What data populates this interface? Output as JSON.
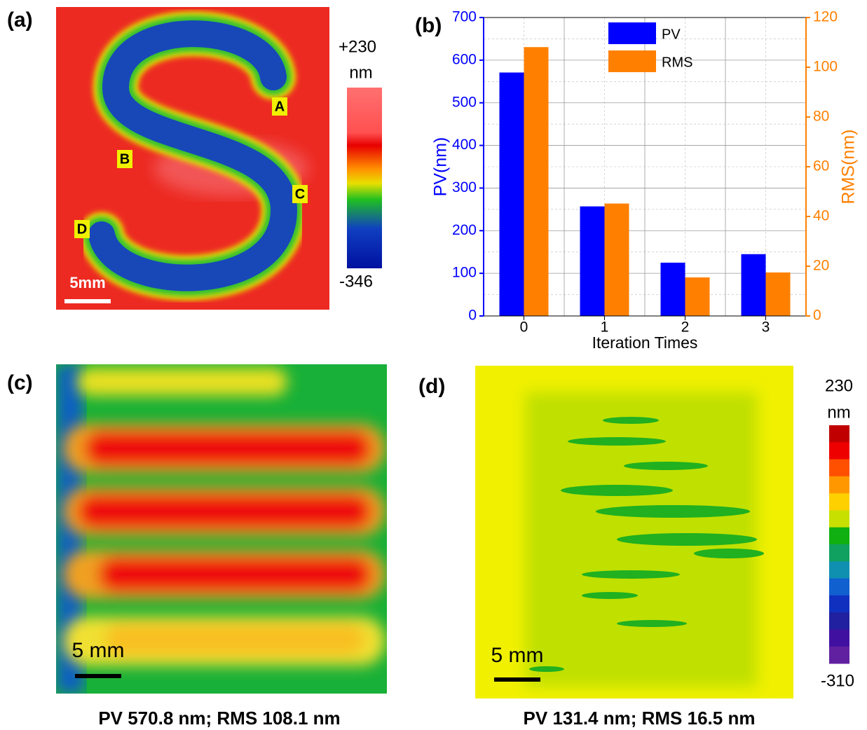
{
  "panel_a": {
    "label": "(a)",
    "colorbar_max": "+230",
    "colorbar_unit": "nm",
    "colorbar_min": "-346",
    "points": [
      "A",
      "B",
      "C",
      "D"
    ],
    "scale_bar": "5mm"
  },
  "chart_data": {
    "type": "bar",
    "label": "(b)",
    "xlabel": "Iteration Times",
    "ylabel": "PV(nm)",
    "y2label": "RMS(nm)",
    "categories": [
      "0",
      "1",
      "2",
      "3"
    ],
    "series": [
      {
        "name": "PV",
        "color": "#0000ff",
        "values": [
          571,
          257,
          125,
          145
        ]
      },
      {
        "name": "RMS",
        "color": "#ff8000",
        "axis": "y2",
        "values": [
          108.1,
          45.2,
          15.5,
          17.5
        ]
      }
    ],
    "ylim": [
      0,
      700
    ],
    "yticks": [
      0,
      100,
      200,
      300,
      400,
      500,
      600,
      700
    ],
    "y2lim": [
      0,
      120
    ],
    "y2ticks": [
      0,
      20,
      40,
      60,
      80,
      100,
      120
    ],
    "grid": true,
    "legend": "upper-center"
  },
  "panel_c": {
    "label": "(c)",
    "scale_bar": "5 mm",
    "caption": "PV 570.8 nm; RMS 108.1 nm"
  },
  "panel_d": {
    "label": "(d)",
    "colorbar_max": "230",
    "colorbar_unit": "nm",
    "colorbar_min": "-310",
    "scale_bar": "5 mm",
    "caption": "PV 131.4 nm; RMS 16.5 nm"
  }
}
